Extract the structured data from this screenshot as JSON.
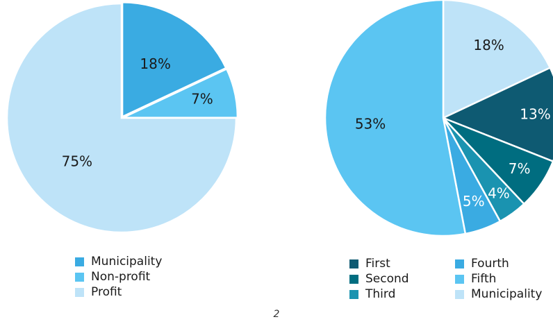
{
  "chart_data": [
    {
      "type": "pie",
      "title": "",
      "start_angle_deg": 0,
      "direction": "clockwise",
      "slices": [
        {
          "label": "Municipality",
          "value": 18,
          "display": "18%",
          "color": "#3AABE2"
        },
        {
          "label": "Non-profit",
          "value": 7,
          "display": "7%",
          "color": "#5BC5F2"
        },
        {
          "label": "Profit",
          "value": 75,
          "display": "75%",
          "color": "#BEE3F8"
        }
      ],
      "legend": {
        "position": "bottom",
        "items": [
          {
            "label": "Municipality",
            "color": "#3AABE2"
          },
          {
            "label": "Non-profit",
            "color": "#5BC5F2"
          },
          {
            "label": "Profit",
            "color": "#BEE3F8"
          }
        ]
      }
    },
    {
      "type": "pie",
      "title": "",
      "start_angle_deg": 0,
      "direction": "clockwise",
      "slices": [
        {
          "label": "Municipality",
          "value": 18,
          "display": "18%",
          "color": "#BEE3F8"
        },
        {
          "label": "First",
          "value": 13,
          "display": "13%",
          "color": "#0E5A72"
        },
        {
          "label": "Second",
          "value": 7,
          "display": "7%",
          "color": "#006D80"
        },
        {
          "label": "Third",
          "value": 4,
          "display": "4%",
          "color": "#1A93B0"
        },
        {
          "label": "Fourth",
          "value": 5,
          "display": "5%",
          "color": "#3AABE2"
        },
        {
          "label": "Fifth",
          "value": 53,
          "display": "53%",
          "color": "#5BC5F2"
        }
      ],
      "legend": {
        "position": "bottom",
        "items": [
          {
            "label": "First",
            "color": "#0E5A72"
          },
          {
            "label": "Second",
            "color": "#006D80"
          },
          {
            "label": "Third",
            "color": "#1A93B0"
          },
          {
            "label": "Fourth",
            "color": "#3AABE2"
          },
          {
            "label": "Fifth",
            "color": "#5BC5F2"
          },
          {
            "label": "Municipality",
            "color": "#BEE3F8"
          }
        ]
      }
    }
  ],
  "page": {
    "number": "2"
  }
}
